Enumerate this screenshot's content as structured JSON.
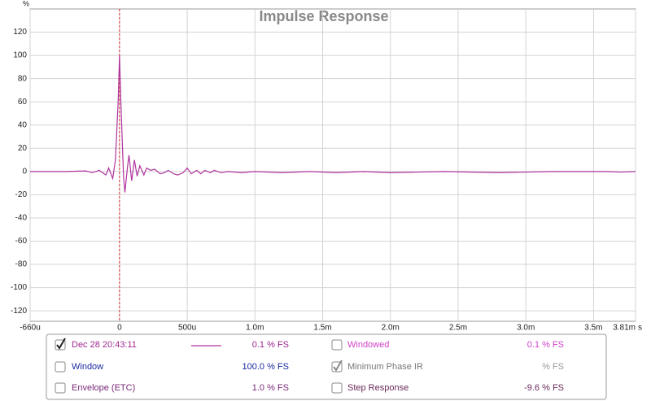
{
  "chart_data": {
    "type": "line",
    "title": "Impulse Response",
    "y_unit": "%",
    "x_unit": "s",
    "x": [
      -0.66,
      -0.4,
      -0.25,
      -0.2,
      -0.15,
      -0.1,
      -0.08,
      -0.05,
      -0.03,
      -0.01,
      0,
      0.01,
      0.03,
      0.04,
      0.06,
      0.07,
      0.09,
      0.11,
      0.13,
      0.15,
      0.18,
      0.2,
      0.23,
      0.26,
      0.3,
      0.33,
      0.36,
      0.4,
      0.43,
      0.47,
      0.5,
      0.53,
      0.57,
      0.6,
      0.63,
      0.67,
      0.7,
      0.75,
      0.8,
      0.9,
      1.0,
      1.2,
      1.4,
      1.6,
      1.8,
      2.0,
      2.4,
      2.8,
      3.2,
      3.6,
      3.7,
      3.81
    ],
    "series": [
      {
        "name": "Dec 28 20:43:11",
        "color": "#b0349e",
        "values": [
          0,
          0,
          0.5,
          -1,
          1,
          -3,
          3,
          -6,
          10,
          60,
          100,
          60,
          -5,
          -18,
          5,
          14,
          -8,
          10,
          -4,
          5,
          -3,
          3,
          1,
          2,
          -2,
          -1,
          1,
          -2,
          -3,
          -1,
          3,
          -2,
          1,
          -2,
          1,
          -1,
          1,
          -1,
          0,
          -1,
          0,
          -1,
          0,
          -1,
          0,
          -1,
          0,
          -1,
          0,
          0,
          -0.5,
          0
        ]
      }
    ],
    "marker_x": 0,
    "marker_color": "#e03030",
    "xlim": [
      -0.66,
      3.81
    ],
    "ylim": [
      -129,
      140
    ],
    "xticks": [
      {
        "value": -0.66,
        "label": "-660u"
      },
      0,
      {
        "value": 0.5,
        "label": "500u"
      },
      {
        "value": 1,
        "label": "1.0m"
      },
      {
        "value": 1.5,
        "label": "1.5m"
      },
      {
        "value": 2,
        "label": "2.0m"
      },
      {
        "value": 2.5,
        "label": "2.5m"
      },
      {
        "value": 3,
        "label": "3.0m"
      },
      {
        "value": 3.5,
        "label": "3.5m"
      },
      {
        "value": 3.81,
        "label": "3.81m"
      }
    ],
    "yticks": [
      -120,
      -100,
      -80,
      -60,
      -40,
      -20,
      0,
      20,
      40,
      60,
      80,
      100,
      120
    ],
    "grid": true
  },
  "legend_panel": {
    "items": [
      {
        "value": "0.1 % FS",
        "checked": true,
        "color": "#a02890",
        "value_color": "#a02890"
      },
      {
        "label": "Windowed",
        "value": "0.1 % FS",
        "checked": false,
        "color": "#d040c8",
        "value_color": "#d040c8"
      },
      {
        "label": "Window",
        "value": "100.0 % FS",
        "checked": false,
        "color": "#1a2aa0",
        "value_color": "#1a2aa0"
      },
      {
        "label": "Minimum Phase IR",
        "value": "% FS",
        "checked": true,
        "color": "#777777",
        "value_color": "#999999"
      },
      {
        "label": "Envelope (ETC)",
        "value": "1.0 % FS",
        "checked": false,
        "color": "#7a2a7a",
        "value_color": "#7a2a7a"
      },
      {
        "label": "Step Response",
        "value": "-9.6 % FS",
        "checked": false,
        "color": "#6a2a5a",
        "value_color": "#6a2a5a"
      }
    ]
  }
}
